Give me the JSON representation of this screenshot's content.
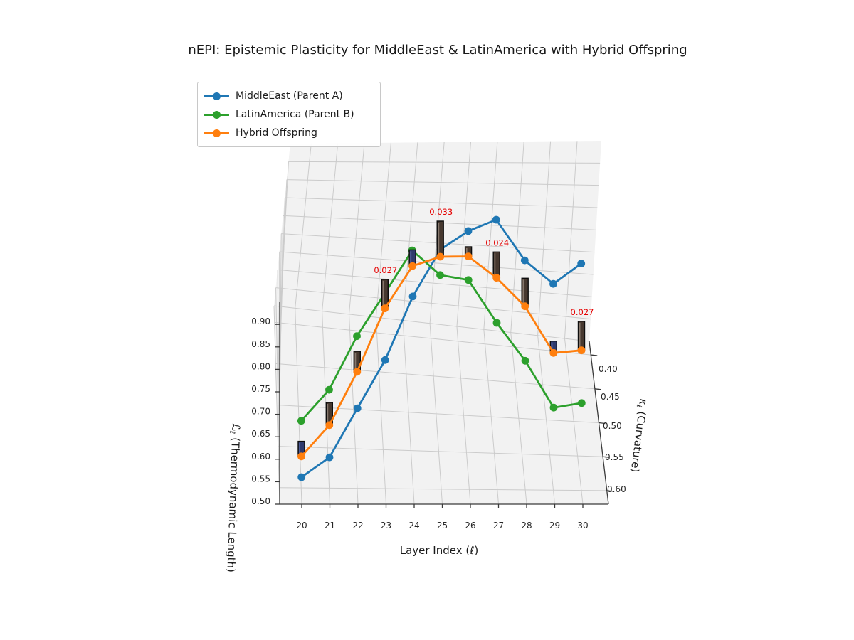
{
  "title": "nEPI: Epistemic Plasticity for MiddleEast & LatinAmerica with Hybrid Offspring",
  "legend": {
    "items": [
      {
        "label": "MiddleEast (Parent A)",
        "color": "#1f77b4"
      },
      {
        "label": "LatinAmerica (Parent B)",
        "color": "#2ca02c"
      },
      {
        "label": "Hybrid Offspring",
        "color": "#ff7f0e"
      }
    ]
  },
  "axes": {
    "x": {
      "label": "Layer Index (ℓ)",
      "ticks": [
        "20",
        "21",
        "22",
        "23",
        "24",
        "25",
        "26",
        "27",
        "28",
        "29",
        "30"
      ]
    },
    "z": {
      "label_sym": "ℒ",
      "label_sub": "ℓ",
      "label_rest": " (Thermodynamic Length)",
      "ticks": [
        "0.50",
        "0.55",
        "0.60",
        "0.65",
        "0.70",
        "0.75",
        "0.80",
        "0.85",
        "0.90"
      ]
    },
    "y": {
      "label_sym": "κ",
      "label_sub": "ℓ",
      "label_rest": " (Curvature)",
      "ticks": [
        "0.40",
        "0.45",
        "0.50",
        "0.55",
        "0.60"
      ]
    }
  },
  "chart_data": {
    "type": "line",
    "projection": "3d",
    "title": "nEPI: Epistemic Plasticity for MiddleEast & LatinAmerica with Hybrid Offspring",
    "xlabel": "Layer Index (ℓ)",
    "ylabel": "κℓ (Curvature)",
    "zlabel": "ℒℓ (Thermodynamic Length)",
    "x": [
      20,
      21,
      22,
      23,
      24,
      25,
      26,
      27,
      28,
      29,
      30
    ],
    "ylim": [
      0.38,
      0.62
    ],
    "y_axis_inverted": true,
    "zlim": [
      0.5,
      0.95
    ],
    "grid": true,
    "legend_position": "upper left",
    "series": [
      {
        "name": "MiddleEast (Parent A)",
        "color": "#1f77b4",
        "curvature": [
          0.6,
          0.59,
          0.57,
          0.54,
          0.5,
          0.46,
          0.44,
          0.43,
          0.46,
          0.5,
          0.48
        ],
        "length": [
          0.53,
          0.559,
          0.638,
          0.7,
          0.781,
          0.825,
          0.836,
          0.846,
          0.801,
          0.809,
          0.824
        ]
      },
      {
        "name": "LatinAmerica (Parent B)",
        "color": "#2ca02c",
        "curvature": [
          0.58,
          0.56,
          0.53,
          0.49,
          0.45,
          0.44,
          0.45,
          0.47,
          0.5,
          0.53,
          0.52
        ],
        "length": [
          0.625,
          0.664,
          0.738,
          0.772,
          0.808,
          0.738,
          0.742,
          0.677,
          0.638,
          0.579,
          0.574
        ]
      },
      {
        "name": "Hybrid Offspring",
        "color": "#ff7f0e",
        "curvature": [
          0.59,
          0.575,
          0.55,
          0.515,
          0.475,
          0.45,
          0.445,
          0.45,
          0.48,
          0.515,
          0.5
        ],
        "length": [
          0.561,
          0.608,
          0.689,
          0.777,
          0.811,
          0.794,
          0.787,
          0.747,
          0.729,
          0.678,
          0.661
        ]
      }
    ],
    "nepi_bars": {
      "description": "nEPI bars drawn along the Hybrid Offspring line",
      "values": [
        0.014,
        0.021,
        0.019,
        0.027,
        0.015,
        0.033,
        0.009,
        0.024,
        0.026,
        0.011,
        0.027
      ],
      "bar_color_keys": [
        "navy",
        "dark",
        "dark",
        "dark",
        "navy",
        "dark",
        "dark",
        "dark",
        "dark",
        "navy",
        "dark"
      ],
      "bar_colors": {
        "dark": {
          "fill": "#46382f",
          "edge": "#0d0d0d",
          "hi": "#8d7f74"
        },
        "navy": {
          "fill": "#2e3a6e",
          "edge": "#0d0d0d",
          "hi": "#6a79b8"
        }
      },
      "annotations": [
        {
          "layer": 23,
          "text": "0.027"
        },
        {
          "layer": 25,
          "text": "0.033"
        },
        {
          "layer": 27,
          "text": "0.024"
        },
        {
          "layer": 30,
          "text": "0.027"
        }
      ],
      "annotation_color": "#e50000"
    }
  }
}
